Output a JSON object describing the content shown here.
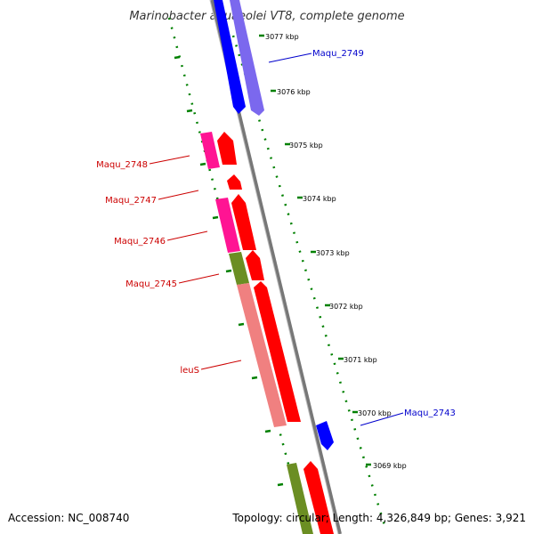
{
  "title": "Marinobacter aquaeolei VT8, complete genome",
  "kbp_labels": [
    "3077 kbp",
    "3076 kbp",
    "3075 kbp",
    "3074 kbp",
    "3073 kbp",
    "3072 kbp",
    "3071 kbp",
    "3070 kbp",
    "3069 kbp"
  ],
  "gene_labels": {
    "maqu_2749": "Maqu_2749",
    "maqu_2748": "Maqu_2748",
    "maqu_2747": "Maqu_2747",
    "maqu_2746": "Maqu_2746",
    "maqu_2745": "Maqu_2745",
    "leus": "leuS",
    "maqu_2743": "Maqu_2743"
  },
  "footer": {
    "accession": "Accession: NC_008740",
    "topology": "Topology: circular; Length: 4,326,849 bp; Genes: 3,921"
  },
  "colors": {
    "red": "#ff0000",
    "pink": "#ff1493",
    "salmon": "#f08080",
    "olive": "#6b8e23",
    "blue": "#0000ff",
    "slate": "#7b68ee",
    "backbone": "#808080",
    "tick_green": "#008000"
  }
}
